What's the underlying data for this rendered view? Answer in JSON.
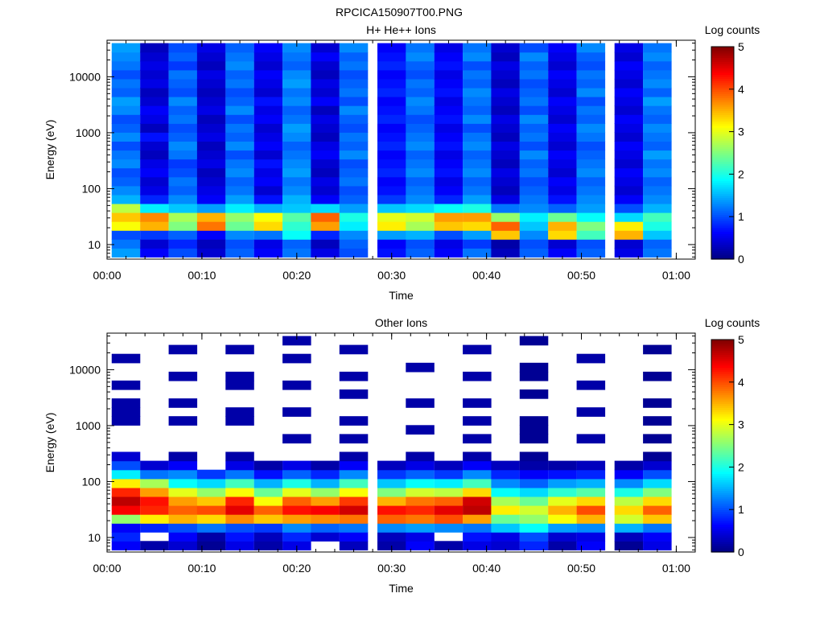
{
  "figure_title": "RPCICA150907T00.PNG",
  "chart_data": [
    {
      "type": "heatmap",
      "title": "H+ He++ Ions",
      "xlabel": "Time",
      "ylabel": "Energy (eV)",
      "x_ticks": [
        "00:00",
        "00:10",
        "00:20",
        "00:30",
        "00:40",
        "00:50",
        "01:00"
      ],
      "xlim": [
        "00:00",
        "01:02"
      ],
      "y_scale": "log",
      "ylim": [
        5.5,
        45000
      ],
      "y_ticks": [
        "10",
        "100",
        "1000",
        "10000"
      ],
      "colorbar": {
        "label": "Log counts",
        "range": [
          0,
          5
        ],
        "ticks": [
          "0",
          "1",
          "2",
          "3",
          "4",
          "5"
        ]
      },
      "columns": [
        {
          "t": "00:02",
          "level": [
            1.4,
            1.2,
            1.0,
            3.1,
            3.4,
            2.8,
            1.5,
            1.3,
            1.1,
            1.0,
            1.3,
            1.2,
            1.0,
            1.3,
            1.1,
            1.0,
            1.3,
            1.4,
            1.1,
            1.2,
            1.0,
            1.2,
            1.3,
            1.4
          ]
        },
        {
          "t": "00:05",
          "level": [
            0.6,
            0.4,
            0.9,
            3.5,
            3.7,
            1.8,
            0.8,
            0.5,
            0.4,
            0.6,
            0.5,
            0.3,
            0.4,
            0.7,
            0.3,
            0.5,
            0.6,
            0.4,
            0.3,
            0.5,
            0.4,
            0.5,
            0.4,
            0.3
          ]
        },
        {
          "t": "00:08",
          "level": [
            1.0,
            0.8,
            1.1,
            2.5,
            2.7,
            1.6,
            1.3,
            1.1,
            1.2,
            1.0,
            0.9,
            1.2,
            1.3,
            1.1,
            1.0,
            1.2,
            1.1,
            1.3,
            1.0,
            1.1,
            1.2,
            0.9,
            1.1,
            1.0
          ]
        },
        {
          "t": "00:11",
          "level": [
            0.4,
            0.3,
            0.6,
            3.8,
            3.5,
            1.4,
            0.6,
            0.5,
            0.4,
            0.3,
            0.5,
            0.4,
            0.3,
            0.5,
            0.4,
            0.3,
            0.5,
            0.4,
            0.3,
            0.4,
            0.5,
            0.3,
            0.4,
            0.5
          ]
        },
        {
          "t": "00:14",
          "level": [
            1.1,
            1.0,
            1.3,
            2.4,
            2.6,
            1.8,
            1.4,
            1.2,
            1.1,
            1.3,
            1.2,
            1.0,
            1.3,
            1.1,
            1.2,
            1.0,
            1.3,
            1.1,
            1.0,
            1.2,
            1.1,
            1.3,
            1.2,
            1.1
          ]
        },
        {
          "t": "00:17",
          "level": [
            0.6,
            0.5,
            1.2,
            3.3,
            3.1,
            1.5,
            0.7,
            0.4,
            0.6,
            0.5,
            0.7,
            0.4,
            0.6,
            0.5,
            0.4,
            0.6,
            0.5,
            0.7,
            0.4,
            0.5,
            0.6,
            0.4,
            0.5,
            0.6
          ]
        },
        {
          "t": "00:20",
          "level": [
            1.2,
            1.1,
            1.9,
            2.1,
            2.3,
            1.6,
            1.5,
            1.3,
            1.2,
            1.4,
            1.3,
            1.2,
            1.1,
            1.3,
            1.4,
            1.2,
            1.1,
            1.3,
            1.2,
            1.4,
            1.3,
            1.1,
            1.2,
            1.3
          ]
        },
        {
          "t": "00:23",
          "level": [
            0.5,
            0.3,
            0.8,
            3.6,
            3.9,
            1.7,
            0.6,
            0.4,
            0.5,
            0.3,
            0.4,
            0.6,
            0.5,
            0.3,
            0.4,
            0.5,
            0.3,
            0.6,
            0.4,
            0.5,
            0.3,
            0.4,
            0.6,
            0.4
          ]
        },
        {
          "t": "00:26",
          "level": [
            1.0,
            1.1,
            1.3,
            1.8,
            2.0,
            1.4,
            1.1,
            1.0,
            1.2,
            1.1,
            1.0,
            1.3,
            1.1,
            1.2,
            1.0,
            1.1,
            1.3,
            1.0,
            1.2,
            1.1,
            1.0,
            1.2,
            1.1,
            1.3
          ]
        },
        {
          "t": "00:30",
          "level": [
            0.7,
            0.6,
            1.4,
            3.2,
            3.0,
            1.6,
            0.9,
            0.7,
            0.6,
            0.8,
            0.7,
            0.6,
            0.8,
            0.7,
            0.6,
            0.8,
            0.7,
            0.6,
            0.8,
            0.7,
            0.6,
            0.8,
            0.7,
            0.6
          ]
        },
        {
          "t": "00:33",
          "level": [
            1.1,
            1.0,
            1.5,
            2.7,
            2.9,
            1.7,
            1.3,
            1.2,
            1.1,
            1.3,
            1.2,
            1.1,
            1.3,
            1.2,
            1.1,
            1.0,
            1.2,
            1.3,
            1.1,
            1.2,
            1.0,
            1.1,
            1.3,
            1.2
          ]
        },
        {
          "t": "00:36",
          "level": [
            0.6,
            0.5,
            1.0,
            3.4,
            3.6,
            1.9,
            0.8,
            0.6,
            0.5,
            0.7,
            0.6,
            0.5,
            0.7,
            0.6,
            0.5,
            0.7,
            0.6,
            0.5,
            0.7,
            0.6,
            0.5,
            0.7,
            0.6,
            0.5
          ]
        },
        {
          "t": "00:39",
          "level": [
            1.2,
            0.9,
            1.4,
            3.3,
            3.6,
            2.0,
            1.4,
            1.2,
            1.1,
            1.3,
            1.2,
            1.1,
            1.3,
            1.2,
            1.0,
            1.3,
            1.1,
            1.2,
            1.3,
            1.1,
            1.2,
            1.0,
            1.3,
            1.2
          ]
        },
        {
          "t": "00:42",
          "level": [
            0.3,
            0.2,
            3.4,
            3.9,
            2.6,
            1.2,
            0.5,
            0.3,
            0.4,
            0.5,
            0.3,
            0.4,
            0.5,
            0.3,
            0.4,
            0.5,
            0.3,
            0.4,
            0.5,
            0.3,
            0.4,
            0.5,
            0.3,
            0.4
          ]
        },
        {
          "t": "00:45",
          "level": [
            1.1,
            1.0,
            1.3,
            1.6,
            1.8,
            1.3,
            1.2,
            1.1,
            1.0,
            1.2,
            1.1,
            1.3,
            1.0,
            1.2,
            1.1,
            1.3,
            1.0,
            1.2,
            1.1,
            1.0,
            1.2,
            1.1,
            1.3,
            1.0
          ]
        },
        {
          "t": "00:48",
          "level": [
            0.6,
            0.4,
            3.3,
            3.5,
            2.4,
            1.1,
            0.7,
            0.5,
            0.6,
            0.4,
            0.5,
            0.6,
            0.4,
            0.5,
            0.6,
            0.4,
            0.5,
            0.6,
            0.4,
            0.5,
            0.6,
            0.4,
            0.5,
            0.6
          ]
        },
        {
          "t": "00:51",
          "level": [
            1.1,
            1.0,
            2.2,
            2.5,
            1.9,
            1.4,
            1.3,
            1.2,
            1.1,
            1.3,
            1.2,
            1.1,
            1.0,
            1.2,
            1.3,
            1.1,
            1.2,
            1.0,
            1.3,
            1.1,
            1.2,
            1.0,
            1.1,
            1.3
          ]
        },
        {
          "t": "00:55",
          "level": [
            0.5,
            0.4,
            3.5,
            3.2,
            1.7,
            1.0,
            0.6,
            0.4,
            0.5,
            0.6,
            0.4,
            0.5,
            0.6,
            0.4,
            0.5,
            0.6,
            0.4,
            0.5,
            0.6,
            0.4,
            0.5,
            0.6,
            0.4,
            0.5
          ]
        },
        {
          "t": "00:58",
          "level": [
            1.2,
            1.1,
            1.6,
            2.0,
            2.2,
            1.5,
            1.3,
            1.2,
            1.1,
            1.3,
            1.2,
            1.4,
            1.1,
            1.2,
            1.3,
            1.1,
            1.2,
            1.4,
            1.1,
            1.3,
            1.2,
            1.1,
            1.3,
            1.2
          ]
        }
      ]
    },
    {
      "type": "heatmap",
      "title": "Other Ions",
      "xlabel": "Time",
      "ylabel": "Energy (eV)",
      "x_ticks": [
        "00:00",
        "00:10",
        "00:20",
        "00:30",
        "00:40",
        "00:50",
        "01:00"
      ],
      "xlim": [
        "00:00",
        "01:02"
      ],
      "y_scale": "log",
      "ylim": [
        5.5,
        45000
      ],
      "y_ticks": [
        "10",
        "100",
        "1000",
        "10000"
      ],
      "colorbar": {
        "label": "Log counts",
        "range": [
          0,
          5
        ],
        "ticks": [
          "0",
          "1",
          "2",
          "3",
          "4",
          "5"
        ]
      },
      "columns": [
        {
          "t": "00:02",
          "level": [
            0.6,
            0.8,
            0.6,
            2.6,
            4.4,
            4.7,
            4.2,
            3.2,
            1.8,
            1.0,
            0.4,
            0,
            0,
            0,
            0.2,
            0.2,
            0.2,
            0,
            0.2,
            0,
            0,
            0.2,
            0,
            0
          ]
        },
        {
          "t": "00:05",
          "level": [
            0.2,
            null,
            0.8,
            3.2,
            4.2,
            4.3,
            3.6,
            2.7,
            1.2,
            0.4,
            0,
            0,
            0,
            0,
            0,
            0,
            0,
            0,
            0,
            0,
            0,
            0,
            0,
            0
          ]
        },
        {
          "t": "00:08",
          "level": [
            0.4,
            0.6,
            1.0,
            3.5,
            3.9,
            3.6,
            3.0,
            1.9,
            1.3,
            0.6,
            0.2,
            0,
            0,
            0,
            0.2,
            0,
            0.2,
            0,
            0,
            0.2,
            0,
            0,
            0.2,
            0
          ]
        },
        {
          "t": "00:11",
          "level": [
            0.1,
            0.2,
            1.2,
            3.3,
            4.0,
            3.4,
            2.6,
            1.7,
            0.9,
            0,
            0,
            0,
            0,
            0,
            0,
            0,
            0,
            0,
            0,
            0,
            0,
            0,
            0,
            0
          ]
        },
        {
          "t": "00:14",
          "level": [
            0.5,
            0.7,
            1.0,
            3.7,
            4.5,
            4.2,
            3.1,
            2.2,
            1.2,
            0.5,
            0.2,
            0,
            0,
            0,
            0.2,
            0.2,
            0,
            0,
            0.2,
            0.2,
            0,
            0,
            0.2,
            0
          ]
        },
        {
          "t": "00:17",
          "level": [
            0.2,
            0.3,
            0.9,
            3.4,
            3.9,
            3.1,
            2.4,
            1.5,
            0.7,
            0.2,
            0,
            0,
            0,
            0,
            0,
            0,
            0,
            0,
            0,
            0,
            0,
            0,
            0,
            0
          ]
        },
        {
          "t": "00:20",
          "level": [
            0.5,
            0.8,
            1.3,
            3.6,
            4.3,
            3.9,
            3.0,
            2.0,
            1.1,
            0.5,
            0,
            0,
            0.2,
            0,
            0,
            0.2,
            0,
            0,
            0.2,
            0,
            0,
            0.2,
            0,
            0.2
          ]
        },
        {
          "t": "00:23",
          "level": [
            null,
            0.4,
            1.1,
            3.7,
            4.4,
            3.6,
            2.6,
            1.5,
            0.8,
            0.2,
            0,
            0,
            0,
            0,
            0,
            0,
            0,
            0,
            0,
            0,
            0,
            0,
            0,
            0
          ]
        },
        {
          "t": "00:26",
          "level": [
            0.3,
            0.6,
            1.2,
            3.8,
            4.6,
            4.1,
            3.1,
            2.2,
            1.3,
            0.6,
            0.2,
            0,
            0.2,
            0,
            0.2,
            0,
            0,
            0.2,
            0,
            0.2,
            0,
            0,
            0.2,
            0
          ]
        },
        {
          "t": "00:30",
          "level": [
            0.2,
            0.3,
            1.3,
            3.9,
            4.3,
            3.5,
            2.5,
            1.6,
            0.9,
            0.3,
            0,
            0,
            0,
            0,
            0,
            0,
            0,
            0,
            0,
            0,
            0,
            0,
            0,
            0
          ]
        },
        {
          "t": "00:33",
          "level": [
            0.6,
            0.5,
            1.4,
            3.8,
            4.2,
            3.8,
            2.9,
            1.9,
            1.1,
            0.5,
            0.2,
            0,
            0,
            0.2,
            0,
            0,
            0.2,
            0,
            0,
            0,
            0.2,
            0,
            0,
            0
          ]
        },
        {
          "t": "00:36",
          "level": [
            0.2,
            null,
            1.3,
            4.0,
            4.5,
            3.9,
            2.8,
            1.8,
            0.9,
            0.3,
            0,
            0,
            0,
            0,
            0,
            0,
            0,
            0,
            0,
            0,
            0,
            0,
            0,
            0
          ]
        },
        {
          "t": "00:39",
          "level": [
            0.5,
            0.7,
            1.2,
            3.6,
            4.7,
            4.6,
            3.3,
            2.2,
            1.3,
            0.6,
            0.2,
            0,
            0.2,
            0,
            0.2,
            0,
            0.2,
            0,
            0,
            0.2,
            0,
            0,
            0.2,
            0
          ]
        },
        {
          "t": "00:42",
          "level": [
            0.4,
            0.5,
            1.6,
            2.4,
            3.2,
            2.7,
            1.9,
            1.3,
            0.8,
            0.3,
            0,
            0,
            0,
            0,
            0,
            0,
            0,
            0,
            0,
            0,
            0,
            0,
            0,
            0
          ]
        },
        {
          "t": "00:45",
          "level": [
            0.8,
            1.0,
            1.9,
            2.6,
            2.9,
            2.4,
            1.7,
            1.1,
            0.6,
            0.2,
            0.1,
            0,
            0.1,
            0.1,
            0.1,
            0,
            0,
            0.1,
            0,
            0.1,
            0.1,
            0,
            0,
            0.1
          ]
        },
        {
          "t": "00:48",
          "level": [
            0.2,
            0.4,
            1.4,
            3.1,
            3.5,
            3.0,
            2.1,
            1.4,
            0.7,
            0.2,
            0,
            0,
            0,
            0,
            0,
            0,
            0,
            0,
            0,
            0,
            0,
            0,
            0,
            0
          ]
        },
        {
          "t": "00:51",
          "level": [
            0.6,
            0.5,
            1.3,
            3.5,
            4.0,
            3.3,
            2.3,
            1.5,
            0.8,
            0.3,
            0,
            0,
            0.2,
            0,
            0,
            0.2,
            0,
            0,
            0.2,
            0,
            0,
            0.2,
            0,
            0
          ]
        },
        {
          "t": "00:55",
          "level": [
            0.1,
            0.3,
            1.5,
            2.9,
            3.3,
            2.8,
            2.0,
            1.3,
            0.6,
            0.2,
            0,
            0,
            0,
            0,
            0,
            0,
            0,
            0,
            0,
            0,
            0,
            0,
            0,
            0
          ]
        },
        {
          "t": "00:58",
          "level": [
            0.5,
            0.6,
            1.2,
            3.4,
            3.9,
            3.3,
            2.5,
            1.7,
            1.0,
            0.4,
            0.1,
            0,
            0.1,
            0,
            0.1,
            0,
            0.1,
            0,
            0,
            0.1,
            0,
            0,
            0.1,
            0
          ]
        }
      ]
    }
  ]
}
